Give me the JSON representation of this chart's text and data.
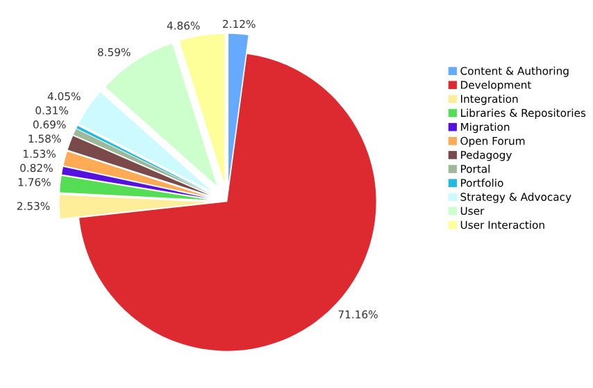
{
  "chart_data": {
    "type": "pie",
    "categories": [
      "Content & Authoring",
      "Development",
      "Integration",
      "Libraries & Repositories",
      "Migration",
      "Open Forum",
      "Pedagogy",
      "Portal",
      "Portfolio",
      "Strategy & Advocacy",
      "User",
      "User Interaction"
    ],
    "values": [
      2.12,
      71.16,
      2.53,
      1.76,
      0.82,
      1.53,
      1.58,
      0.69,
      0.31,
      4.05,
      8.59,
      4.86
    ],
    "value_labels": [
      "2.12%",
      "71.16%",
      "2.53%",
      "1.76%",
      "0.82%",
      "1.53%",
      "1.58%",
      "0.69%",
      "0.31%",
      "4.05%",
      "8.59%",
      "4.86%"
    ],
    "colors": [
      "#66aaff",
      "#dd2a30",
      "#ffee99",
      "#55dd55",
      "#5511dd",
      "#ffaa55",
      "#7a4a4a",
      "#a0b89a",
      "#22bbdd",
      "#ccfaff",
      "#ccffcc",
      "#ffff99"
    ],
    "legend": "right"
  }
}
